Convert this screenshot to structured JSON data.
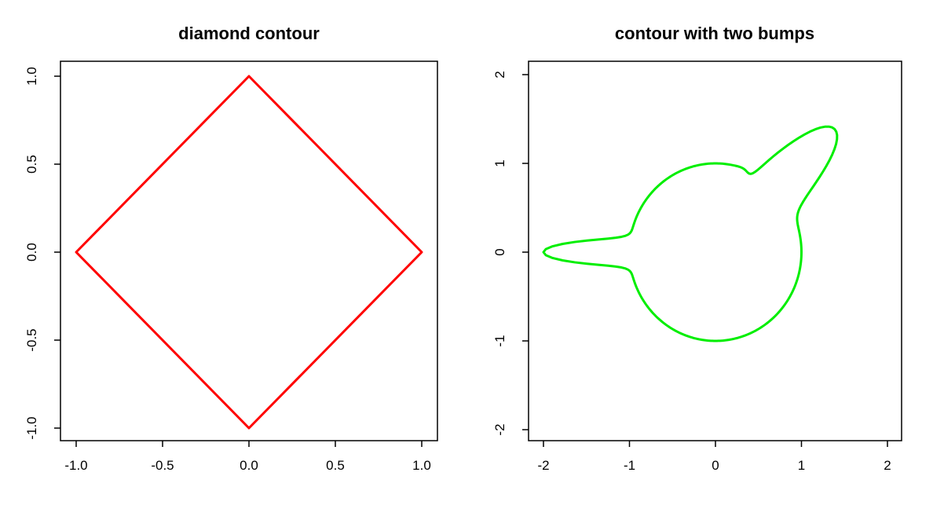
{
  "page": {
    "background": "#FFFFFF",
    "axis_color": "#000000",
    "text_color": "#000000"
  },
  "chart_data": [
    {
      "type": "line",
      "panel": "left",
      "title": "diamond contour",
      "line_color": "#FF0000",
      "line_width": 3,
      "grid": false,
      "legend": null,
      "xlabel": "",
      "ylabel": "",
      "x_ticks": [
        -1.0,
        -0.5,
        0.0,
        0.5,
        1.0
      ],
      "x_tick_labels": [
        "-1.0",
        "-0.5",
        "0.0",
        "0.5",
        "1.0"
      ],
      "y_ticks": [
        -1.0,
        -0.5,
        0.0,
        0.5,
        1.0
      ],
      "y_tick_labels": [
        "-1.0",
        "-0.5",
        "0.0",
        "0.5",
        "1.0"
      ],
      "xlim": [
        -1.09,
        1.09
      ],
      "ylim": [
        -1.08,
        1.08
      ],
      "curve": {
        "kind": "polygon",
        "closed": true,
        "description": "diamond contour where |x| + |y| = 1",
        "points": [
          [
            0,
            1
          ],
          [
            1,
            0
          ],
          [
            0,
            -1
          ],
          [
            -1,
            0
          ]
        ]
      }
    },
    {
      "type": "line",
      "panel": "right",
      "title": "contour with two bumps",
      "line_color": "#00EE00",
      "line_width": 3,
      "grid": false,
      "legend": null,
      "xlabel": "",
      "ylabel": "",
      "x_ticks": [
        -2,
        -1,
        0,
        1,
        2
      ],
      "x_tick_labels": [
        "-2",
        "-1",
        "0",
        "1",
        "2"
      ],
      "y_ticks": [
        -2,
        -1,
        0,
        1,
        2
      ],
      "y_tick_labels": [
        "-2",
        "-1",
        "0",
        "1",
        "2"
      ],
      "xlim": [
        -2.17,
        2.17
      ],
      "ylim": [
        -2.15,
        2.15
      ],
      "curve": {
        "kind": "polar",
        "closed": true,
        "description": "unit circle with gaussian bump spikes at 180deg (reaching x=-2) and 45deg (reaching ~(1.39,1.39)), small notch near 64deg",
        "base_radius": 1,
        "components": [
          {
            "center_deg": 180,
            "amplitude": 1.0,
            "sigma_deg": 6
          },
          {
            "center_deg": 45,
            "amplitude": 0.96,
            "sigma_deg": 12
          },
          {
            "center_deg": 64,
            "amplitude": -0.09,
            "sigma_deg": 5
          }
        ],
        "key_points": {
          "left_tip": [
            -2,
            0
          ],
          "upper_right_tip": [
            1.39,
            1.39
          ],
          "circle_top": [
            0,
            1
          ],
          "circle_bottom": [
            0,
            -1
          ]
        }
      }
    }
  ]
}
